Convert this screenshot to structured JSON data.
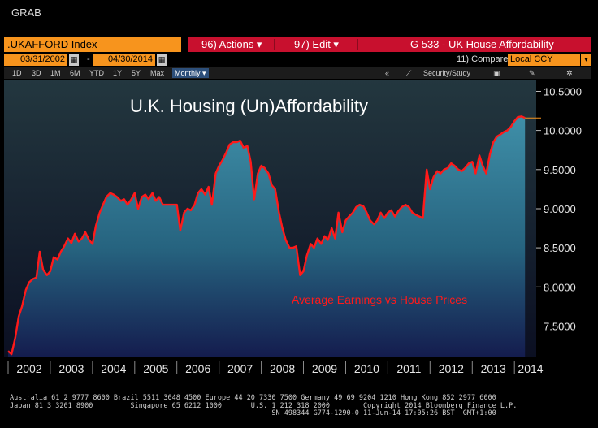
{
  "window": {
    "title": "GRAB"
  },
  "toolbar": {
    "ticker": ".UKAFFORD Index",
    "actions_label": "96) Actions ▾",
    "edit_label": "97) Edit ▾",
    "series_title": "G 533 - UK House Affordability"
  },
  "range": {
    "start_date": "03/31/2002",
    "separator": "-",
    "end_date": "04/30/2014",
    "compare_label": "11) Compare",
    "compare_value": "Local CCY",
    "compare_arrow": "▾"
  },
  "periods": {
    "items": [
      "1D",
      "3D",
      "1M",
      "6M",
      "YTD",
      "1Y",
      "5Y",
      "Max"
    ],
    "selected": "Monthly ▾"
  },
  "tools": {
    "collapse": "«",
    "security_study": "Security/Study"
  },
  "colors": {
    "ticker_bg": "#f7941d",
    "action_bar": "#c8102e",
    "line": "#ff1a1a",
    "last_value_marker": "#f7941d",
    "area_top": "#3f8fa8",
    "area_bottom": "#141c4e"
  },
  "icons": [
    "calendar-icon",
    "chart-style-icon",
    "save-icon",
    "edit-icon",
    "settings-icon"
  ],
  "chart_data": {
    "type": "area",
    "title": "U.K. Housing (Un)Affordability",
    "annotation": "Average Earnings vs House Prices",
    "x_ticks": [
      "2002",
      "2003",
      "2004",
      "2005",
      "2006",
      "2007",
      "2008",
      "2009",
      "2010",
      "2011",
      "2012",
      "2013",
      "2014"
    ],
    "y_ticks": [
      "7.5000",
      "8.0000",
      "8.5000",
      "9.0000",
      "9.5000",
      "10.0000",
      "10.5000"
    ],
    "ylim": [
      7.1,
      10.65
    ],
    "xlim": [
      2002.0,
      2014.42
    ],
    "grid": false,
    "series": [
      {
        "points": [
          [
            2002.0,
            7.18
          ],
          [
            2002.08,
            7.14
          ],
          [
            2002.17,
            7.35
          ],
          [
            2002.25,
            7.62
          ],
          [
            2002.33,
            7.75
          ],
          [
            2002.42,
            7.96
          ],
          [
            2002.5,
            8.06
          ],
          [
            2002.58,
            8.1
          ],
          [
            2002.67,
            8.12
          ],
          [
            2002.75,
            8.45
          ],
          [
            2002.83,
            8.22
          ],
          [
            2002.92,
            8.15
          ],
          [
            2003.0,
            8.2
          ],
          [
            2003.08,
            8.38
          ],
          [
            2003.17,
            8.35
          ],
          [
            2003.25,
            8.45
          ],
          [
            2003.33,
            8.52
          ],
          [
            2003.42,
            8.62
          ],
          [
            2003.5,
            8.56
          ],
          [
            2003.58,
            8.68
          ],
          [
            2003.67,
            8.58
          ],
          [
            2003.75,
            8.62
          ],
          [
            2003.83,
            8.7
          ],
          [
            2003.92,
            8.6
          ],
          [
            2004.0,
            8.55
          ],
          [
            2004.08,
            8.78
          ],
          [
            2004.17,
            8.95
          ],
          [
            2004.25,
            9.05
          ],
          [
            2004.33,
            9.15
          ],
          [
            2004.42,
            9.2
          ],
          [
            2004.5,
            9.18
          ],
          [
            2004.58,
            9.15
          ],
          [
            2004.67,
            9.1
          ],
          [
            2004.75,
            9.12
          ],
          [
            2004.83,
            9.05
          ],
          [
            2004.92,
            9.12
          ],
          [
            2005.0,
            9.2
          ],
          [
            2005.08,
            9.0
          ],
          [
            2005.17,
            9.15
          ],
          [
            2005.25,
            9.18
          ],
          [
            2005.33,
            9.12
          ],
          [
            2005.42,
            9.2
          ],
          [
            2005.5,
            9.1
          ],
          [
            2005.58,
            9.15
          ],
          [
            2005.67,
            9.05
          ],
          [
            2005.75,
            9.05
          ],
          [
            2005.83,
            9.05
          ],
          [
            2005.92,
            9.05
          ],
          [
            2006.0,
            9.05
          ],
          [
            2006.08,
            8.72
          ],
          [
            2006.17,
            8.95
          ],
          [
            2006.25,
            9.0
          ],
          [
            2006.33,
            8.98
          ],
          [
            2006.42,
            9.05
          ],
          [
            2006.5,
            9.2
          ],
          [
            2006.58,
            9.25
          ],
          [
            2006.67,
            9.18
          ],
          [
            2006.75,
            9.28
          ],
          [
            2006.83,
            9.05
          ],
          [
            2006.92,
            9.45
          ],
          [
            2007.0,
            9.55
          ],
          [
            2007.08,
            9.62
          ],
          [
            2007.17,
            9.72
          ],
          [
            2007.25,
            9.82
          ],
          [
            2007.33,
            9.85
          ],
          [
            2007.42,
            9.85
          ],
          [
            2007.5,
            9.87
          ],
          [
            2007.58,
            9.78
          ],
          [
            2007.67,
            9.8
          ],
          [
            2007.75,
            9.6
          ],
          [
            2007.83,
            9.12
          ],
          [
            2007.92,
            9.45
          ],
          [
            2008.0,
            9.55
          ],
          [
            2008.08,
            9.52
          ],
          [
            2008.17,
            9.45
          ],
          [
            2008.25,
            9.3
          ],
          [
            2008.33,
            9.25
          ],
          [
            2008.42,
            8.95
          ],
          [
            2008.5,
            8.75
          ],
          [
            2008.58,
            8.6
          ],
          [
            2008.67,
            8.5
          ],
          [
            2008.75,
            8.5
          ],
          [
            2008.83,
            8.52
          ],
          [
            2008.92,
            8.15
          ],
          [
            2009.0,
            8.2
          ],
          [
            2009.08,
            8.4
          ],
          [
            2009.17,
            8.55
          ],
          [
            2009.25,
            8.5
          ],
          [
            2009.33,
            8.62
          ],
          [
            2009.42,
            8.55
          ],
          [
            2009.5,
            8.65
          ],
          [
            2009.58,
            8.6
          ],
          [
            2009.67,
            8.75
          ],
          [
            2009.75,
            8.62
          ],
          [
            2009.83,
            8.95
          ],
          [
            2009.92,
            8.7
          ],
          [
            2010.0,
            8.85
          ],
          [
            2010.08,
            8.9
          ],
          [
            2010.17,
            8.95
          ],
          [
            2010.25,
            9.02
          ],
          [
            2010.33,
            9.05
          ],
          [
            2010.42,
            9.03
          ],
          [
            2010.5,
            8.95
          ],
          [
            2010.58,
            8.85
          ],
          [
            2010.67,
            8.8
          ],
          [
            2010.75,
            8.85
          ],
          [
            2010.83,
            8.95
          ],
          [
            2010.92,
            8.88
          ],
          [
            2011.0,
            8.95
          ],
          [
            2011.08,
            8.98
          ],
          [
            2011.17,
            8.9
          ],
          [
            2011.25,
            8.97
          ],
          [
            2011.33,
            9.02
          ],
          [
            2011.42,
            9.05
          ],
          [
            2011.5,
            9.02
          ],
          [
            2011.58,
            8.95
          ],
          [
            2011.67,
            8.92
          ],
          [
            2011.75,
            8.9
          ],
          [
            2011.83,
            8.88
          ],
          [
            2011.92,
            9.5
          ],
          [
            2012.0,
            9.25
          ],
          [
            2012.08,
            9.4
          ],
          [
            2012.17,
            9.48
          ],
          [
            2012.25,
            9.45
          ],
          [
            2012.33,
            9.5
          ],
          [
            2012.42,
            9.52
          ],
          [
            2012.5,
            9.58
          ],
          [
            2012.58,
            9.55
          ],
          [
            2012.67,
            9.5
          ],
          [
            2012.75,
            9.48
          ],
          [
            2012.83,
            9.52
          ],
          [
            2012.92,
            9.58
          ],
          [
            2013.0,
            9.6
          ],
          [
            2013.08,
            9.45
          ],
          [
            2013.17,
            9.68
          ],
          [
            2013.25,
            9.55
          ],
          [
            2013.33,
            9.45
          ],
          [
            2013.42,
            9.7
          ],
          [
            2013.5,
            9.85
          ],
          [
            2013.58,
            9.92
          ],
          [
            2013.67,
            9.95
          ],
          [
            2013.75,
            9.98
          ],
          [
            2013.83,
            10.0
          ],
          [
            2013.92,
            10.05
          ],
          [
            2014.0,
            10.12
          ],
          [
            2014.08,
            10.17
          ],
          [
            2014.17,
            10.18
          ],
          [
            2014.25,
            10.16
          ]
        ]
      }
    ]
  },
  "footer": {
    "line1": "Australia 61 2 9777 8600 Brazil 5511 3048 4500 Europe 44 20 7330 7500 Germany 49 69 9204 1210 Hong Kong 852 2977 6000",
    "line2": "Japan 81 3 3201 8900         Singapore 65 6212 1000       U.S. 1 212 318 2000        Copyright 2014 Bloomberg Finance L.P.",
    "line3": "                                                               SN 498344 G774-1290-0 11-Jun-14 17:05:26 BST  GMT+1:00"
  }
}
